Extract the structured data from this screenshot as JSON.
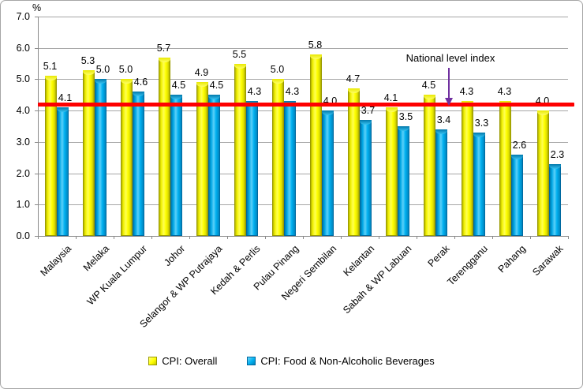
{
  "chart_data": {
    "type": "bar",
    "title": "",
    "unit_label": "%",
    "categories": [
      "Malaysia",
      "Melaka",
      "WP Kuala Lumpur",
      "Johor",
      "Selangor & WP Putrajaya",
      "Kedah & Perlis",
      "Pulau Pinang",
      "Negeri Sembilan",
      "Kelantan",
      "Sabah & WP Labuan",
      "Perak",
      "Terengganu",
      "Pahang",
      "Sarawak"
    ],
    "series": [
      {
        "name": "CPI: Overall",
        "color": "#ffff00",
        "values": [
          5.1,
          5.3,
          5.0,
          5.7,
          4.9,
          5.5,
          5.0,
          5.8,
          4.7,
          4.1,
          4.5,
          4.3,
          4.3,
          4.0
        ]
      },
      {
        "name": "CPI: Food & Non-Alcoholic Beverages",
        "color": "#00b0f0",
        "values": [
          4.1,
          5.0,
          4.6,
          4.5,
          4.5,
          4.3,
          4.3,
          4.0,
          3.7,
          3.5,
          3.4,
          3.3,
          2.6,
          2.3
        ]
      }
    ],
    "ylim": [
      0.0,
      7.0
    ],
    "ytick_step": 1.0,
    "ytick_labels": [
      "0.0",
      "1.0",
      "2.0",
      "3.0",
      "4.0",
      "5.0",
      "6.0",
      "7.0"
    ],
    "grid": true,
    "legend_position": "bottom",
    "reference_line": {
      "label": "National level index",
      "value": 4.2,
      "color": "#fe0000"
    },
    "annotation": {
      "arrow_color": "#7030a0"
    }
  }
}
